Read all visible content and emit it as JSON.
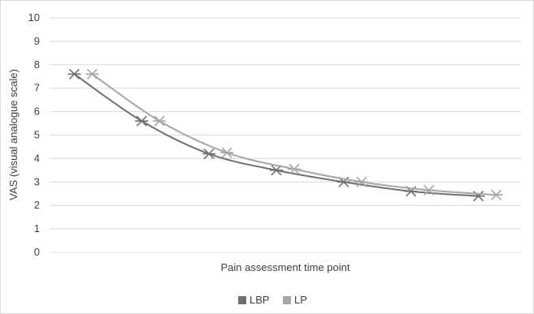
{
  "chart_data": {
    "type": "line",
    "title": "",
    "xlabel": "Pain assessment time point",
    "ylabel": "VAS (visual analogue scale)",
    "ylim": [
      0,
      10
    ],
    "yticks": [
      0,
      1,
      2,
      3,
      4,
      5,
      6,
      7,
      8,
      9,
      10
    ],
    "grid": true,
    "legend_position": "bottom",
    "x": [
      1,
      2,
      3,
      4,
      5,
      6,
      7
    ],
    "series": [
      {
        "name": "LBP",
        "color": "#707070",
        "values": [
          7.6,
          5.6,
          4.2,
          3.5,
          3.0,
          2.6,
          2.4
        ]
      },
      {
        "name": "LP",
        "color": "#a6a6a6",
        "values": [
          7.6,
          5.6,
          4.25,
          3.55,
          3.0,
          2.65,
          2.45
        ]
      }
    ]
  }
}
